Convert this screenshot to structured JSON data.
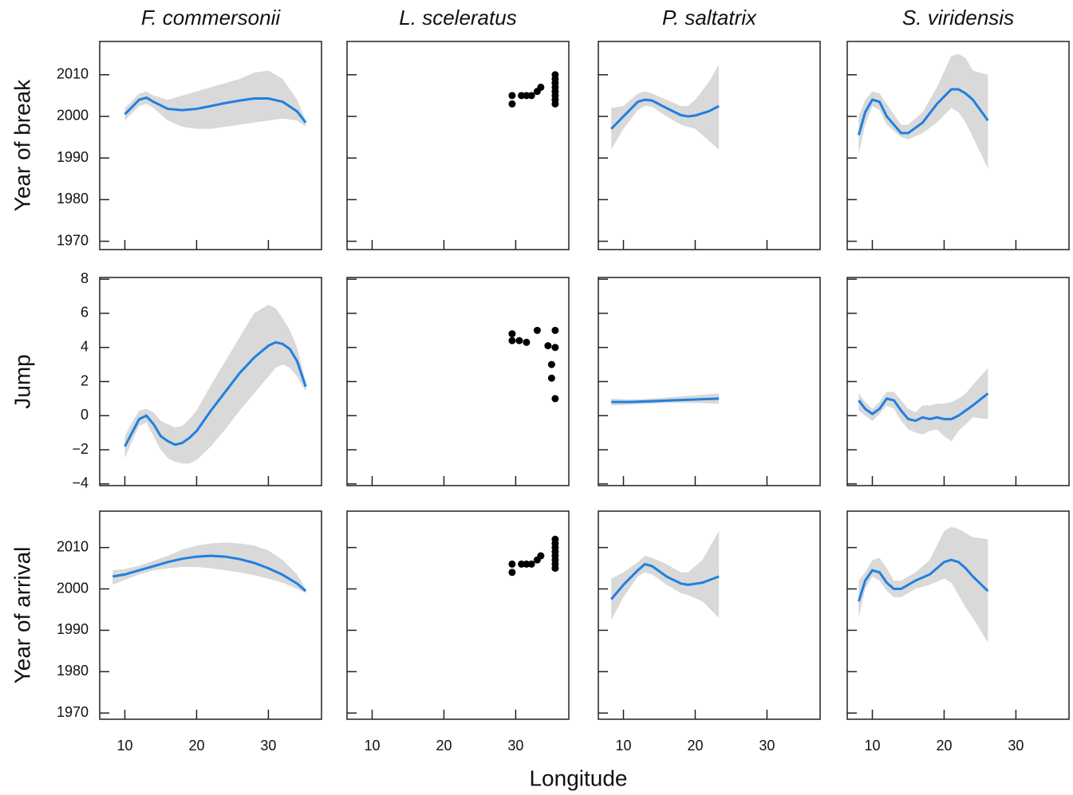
{
  "chart_data": [
    {
      "type": "line",
      "title": "F. commersonii",
      "ylabel": "Year of break",
      "color": "#1f7fe0",
      "band_color": "#d9d9d9",
      "ylim": [
        1968,
        2018
      ],
      "yticks": [
        1970,
        1980,
        1990,
        2000,
        2010
      ],
      "x": [
        10,
        12,
        13,
        14,
        16,
        18,
        20,
        22,
        24,
        26,
        28,
        30,
        32,
        34,
        35.2
      ],
      "values": [
        2000.5,
        2004,
        2004.5,
        2003.5,
        2001.8,
        2001.5,
        2001.8,
        2002.5,
        2003.2,
        2003.8,
        2004.3,
        2004.3,
        2003.5,
        2001.2,
        1998.5
      ],
      "lower": [
        1999,
        2002.5,
        2003,
        2002,
        1999,
        1997.5,
        1997,
        1997,
        1997.5,
        1998,
        1998.5,
        1999,
        1999.5,
        1999,
        1997.5
      ],
      "upper": [
        2002,
        2005.5,
        2006,
        2005,
        2004,
        2005,
        2006,
        2007,
        2008,
        2009,
        2010.5,
        2011,
        2009,
        2004,
        1999
      ]
    },
    {
      "type": "scatter",
      "title": "L. sceleratus",
      "color": "#000000",
      "x": [
        29.5,
        29.5,
        30.8,
        31.5,
        32.2,
        33,
        33.5,
        35.5,
        35.5,
        35.5,
        35.5,
        35.5,
        35.5,
        35.5,
        35.5
      ],
      "values": [
        2005,
        2003,
        2005,
        2005,
        2005,
        2006,
        2007,
        2010,
        2009,
        2008,
        2007,
        2006,
        2005,
        2004,
        2003
      ]
    },
    {
      "type": "line",
      "title": "P. saltatrix",
      "color": "#1f7fe0",
      "band_color": "#d9d9d9",
      "x": [
        8.3,
        10,
        12,
        13,
        14,
        16,
        18,
        19,
        20,
        22,
        23.3
      ],
      "values": [
        1997,
        2000,
        2003.5,
        2004,
        2003.8,
        2002,
        2000.3,
        2000,
        2000.2,
        2001.3,
        2002.5
      ],
      "lower": [
        1992,
        1997,
        2001.5,
        2002.5,
        2002.3,
        2000,
        1998,
        1997.5,
        1997,
        1994,
        1992
      ],
      "upper": [
        2002,
        2002.5,
        2005.5,
        2006,
        2005.5,
        2004,
        2002.5,
        2002.5,
        2004,
        2008.5,
        2012.5
      ]
    },
    {
      "type": "line",
      "title": "S. viridensis",
      "color": "#1f7fe0",
      "band_color": "#d9d9d9",
      "x": [
        8.1,
        9,
        10,
        11,
        12,
        14,
        15,
        17,
        19,
        21,
        22,
        23,
        24,
        26.1
      ],
      "values": [
        1995.5,
        2001,
        2004,
        2003.5,
        2000,
        1996,
        1996,
        1998.5,
        2003,
        2006.5,
        2006.5,
        2005.5,
        2004,
        1999
      ],
      "lower": [
        1991,
        1998,
        2002.5,
        2001.5,
        1998,
        1995,
        1994.5,
        1996,
        1998.5,
        2002,
        2001,
        1998.5,
        1995,
        1987.5
      ],
      "upper": [
        2000,
        2004,
        2006,
        2005.5,
        2003,
        1998,
        1998,
        2001,
        2007,
        2014.5,
        2015,
        2014,
        2011,
        2010
      ]
    },
    {
      "type": "line",
      "ylabel": "Jump",
      "color": "#1f7fe0",
      "band_color": "#d9d9d9",
      "ylim": [
        -4.1,
        8.1
      ],
      "yticks": [
        {
          "value": -4,
          "label": "−4"
        },
        {
          "value": -2,
          "label": "−2"
        },
        0,
        2,
        4,
        6,
        8
      ],
      "x": [
        10,
        11,
        12,
        13,
        14,
        15,
        16,
        17,
        18,
        19,
        20,
        22,
        24,
        26,
        28,
        30,
        31,
        32,
        33,
        34,
        35.2
      ],
      "values": [
        -1.8,
        -1.0,
        -0.2,
        0,
        -0.5,
        -1.2,
        -1.5,
        -1.7,
        -1.6,
        -1.3,
        -0.9,
        0.3,
        1.4,
        2.5,
        3.4,
        4.1,
        4.3,
        4.2,
        3.9,
        3.2,
        1.7
      ],
      "lower": [
        -2.5,
        -1.5,
        -0.6,
        -0.4,
        -1.2,
        -2.0,
        -2.5,
        -2.7,
        -2.8,
        -2.8,
        -2.6,
        -1.8,
        -0.8,
        0.3,
        1.3,
        2.3,
        2.8,
        3.0,
        2.8,
        2.3,
        1.4
      ],
      "upper": [
        -1.2,
        -0.4,
        0.3,
        0.4,
        0.2,
        -0.3,
        -0.5,
        -0.7,
        -0.6,
        -0.2,
        0.3,
        1.8,
        3.2,
        4.6,
        6.0,
        6.5,
        6.3,
        5.7,
        5.0,
        4.0,
        2.0
      ]
    },
    {
      "type": "scatter",
      "color": "#000000",
      "x": [
        29.5,
        29.5,
        30.5,
        31.5,
        33,
        35.5,
        34.5,
        35.5,
        35,
        35,
        35.5
      ],
      "values": [
        4.8,
        4.4,
        4.4,
        4.3,
        5,
        5,
        4.1,
        4,
        3,
        2.2,
        1
      ]
    },
    {
      "type": "line",
      "color": "#1f7fe0",
      "band_color": "#d9d9d9",
      "x": [
        8.3,
        11,
        14,
        17,
        20,
        23.3
      ],
      "values": [
        0.8,
        0.8,
        0.85,
        0.9,
        0.95,
        1.0
      ],
      "lower": [
        0.6,
        0.65,
        0.7,
        0.75,
        0.75,
        0.7
      ],
      "upper": [
        1.0,
        0.95,
        1.0,
        1.1,
        1.2,
        1.3
      ]
    },
    {
      "type": "line",
      "color": "#1f7fe0",
      "band_color": "#d9d9d9",
      "x": [
        8.1,
        9,
        10,
        11,
        12,
        13,
        14,
        15,
        16,
        17,
        18,
        19,
        20,
        21,
        22,
        23,
        24,
        26.1
      ],
      "values": [
        0.9,
        0.4,
        0.1,
        0.4,
        1.0,
        0.9,
        0.3,
        -0.2,
        -0.3,
        -0.1,
        -0.2,
        -0.1,
        -0.2,
        -0.2,
        0.0,
        0.3,
        0.6,
        1.3
      ],
      "lower": [
        0.3,
        0,
        -0.3,
        0.1,
        0.6,
        0.4,
        -0.3,
        -0.8,
        -1.0,
        -1.1,
        -0.9,
        -0.8,
        -1.2,
        -1.5,
        -0.9,
        -0.5,
        -0.1,
        -0.2
      ],
      "upper": [
        1.3,
        0.8,
        0.4,
        0.8,
        1.4,
        1.4,
        0.9,
        0.4,
        0.2,
        0.6,
        0.6,
        0.7,
        0.7,
        0.8,
        1.0,
        1.3,
        1.8,
        2.8
      ]
    },
    {
      "type": "line",
      "ylabel": "Year of arrival",
      "xlabel": "Longitude",
      "color": "#1f7fe0",
      "band_color": "#d9d9d9",
      "ylim": [
        1968.5,
        2018.8
      ],
      "yticks": [
        1970,
        1980,
        1990,
        2000,
        2010
      ],
      "xlim": [
        6.5,
        37.4
      ],
      "xticks": [
        10,
        20,
        30
      ],
      "x": [
        8.3,
        10,
        12,
        14,
        16,
        18,
        20,
        22,
        24,
        26,
        28,
        30,
        32,
        34,
        35.2
      ],
      "values": [
        2003,
        2003.5,
        2004.5,
        2005.5,
        2006.5,
        2007.3,
        2007.8,
        2008,
        2007.8,
        2007.2,
        2006.3,
        2005,
        2003.4,
        2001.3,
        1999.5
      ],
      "lower": [
        2001,
        2002.2,
        2003.5,
        2004.5,
        2005,
        2005.3,
        2005.3,
        2005,
        2004.5,
        2004,
        2003.3,
        2002.5,
        2001.5,
        2000,
        1999
      ],
      "upper": [
        2004.5,
        2004.8,
        2005.6,
        2006.8,
        2008,
        2009.5,
        2010.5,
        2011,
        2011.2,
        2011,
        2010.5,
        2009.3,
        2007,
        2003.5,
        2000
      ]
    },
    {
      "type": "scatter",
      "color": "#000000",
      "xlim": [
        6.5,
        37.4
      ],
      "xticks": [
        10,
        20,
        30
      ],
      "x": [
        29.5,
        29.5,
        30.8,
        31.5,
        32.2,
        33,
        33.5,
        35.5,
        35.5,
        35.5,
        35.5,
        35.5,
        35.5,
        35.5,
        35.5
      ],
      "values": [
        2006,
        2004,
        2006,
        2006,
        2006,
        2007,
        2008,
        2012,
        2011,
        2010,
        2009,
        2008,
        2007,
        2006,
        2005
      ]
    },
    {
      "type": "line",
      "color": "#1f7fe0",
      "band_color": "#d9d9d9",
      "xlim": [
        6.5,
        37.4
      ],
      "xticks": [
        10,
        20,
        30
      ],
      "x": [
        8.3,
        10,
        12,
        13,
        14,
        16,
        18,
        19,
        21,
        23.3
      ],
      "values": [
        1997.5,
        2001,
        2004.5,
        2006,
        2005.5,
        2003,
        2001.3,
        2001,
        2001.5,
        2003
      ],
      "lower": [
        1992.5,
        1998,
        2003,
        2004,
        2003.5,
        2001,
        1999,
        1998.5,
        1997,
        1993
      ],
      "upper": [
        2002.5,
        2004,
        2006.5,
        2008,
        2007.5,
        2006,
        2004,
        2004,
        2007,
        2014
      ]
    },
    {
      "type": "line",
      "color": "#1f7fe0",
      "band_color": "#d9d9d9",
      "xlim": [
        6.5,
        37.4
      ],
      "xticks": [
        10,
        20,
        30
      ],
      "x": [
        8.1,
        9,
        10,
        11,
        12,
        13,
        14,
        16,
        18,
        20,
        21,
        22,
        23,
        24,
        26.1
      ],
      "values": [
        1997,
        2002,
        2004.5,
        2004,
        2001.5,
        2000,
        2000,
        2002,
        2003.5,
        2006.5,
        2007,
        2006.5,
        2005,
        2003,
        1999.5
      ],
      "lower": [
        1993,
        2000,
        2003,
        2002,
        1999.5,
        1998,
        1998,
        2000,
        2001,
        2002.5,
        2001.5,
        1998.5,
        1995.5,
        1993,
        1987
      ],
      "upper": [
        2002,
        2004,
        2007,
        2007.5,
        2005,
        2002,
        2002,
        2004,
        2007,
        2014,
        2015,
        2014.5,
        2013.5,
        2012.5,
        2012
      ]
    }
  ]
}
